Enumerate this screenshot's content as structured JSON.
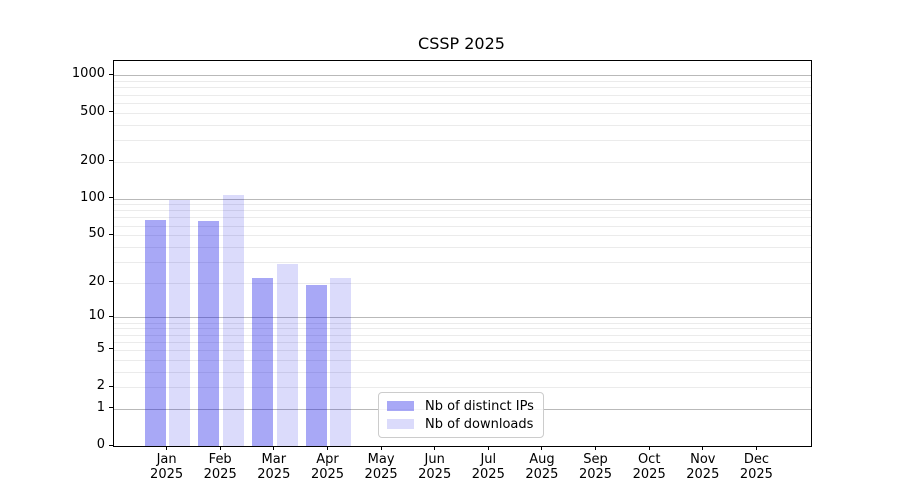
{
  "chart_data": {
    "type": "bar",
    "title": "CSSP 2025",
    "x": {
      "categories": [
        "Jan",
        "Feb",
        "Mar",
        "Apr",
        "May",
        "Jun",
        "Jul",
        "Aug",
        "Sep",
        "Oct",
        "Nov",
        "Dec"
      ],
      "year_label": "2025"
    },
    "series": [
      {
        "key": "distinct-ips",
        "name": "Nb of distinct IPs",
        "color": "rgba(0,0,230,0.34)",
        "values": [
          67,
          66,
          22,
          19,
          0,
          0,
          0,
          0,
          0,
          0,
          0,
          0
        ]
      },
      {
        "key": "downloads",
        "name": "Nb of downloads",
        "color": "rgba(0,0,230,0.14)",
        "values": [
          97,
          107,
          29,
          22,
          0,
          0,
          0,
          0,
          0,
          0,
          0,
          0
        ]
      }
    ],
    "yaxis": {
      "scale": "log1p",
      "ticks": [
        0,
        1,
        2,
        5,
        10,
        20,
        50,
        100,
        200,
        500,
        1000
      ],
      "range_max": 1300
    },
    "grid": {
      "enabled": true,
      "major_color": "#b9b9b9",
      "minor_color": "#ebebeb"
    },
    "legend": {
      "position": "lower center"
    }
  }
}
